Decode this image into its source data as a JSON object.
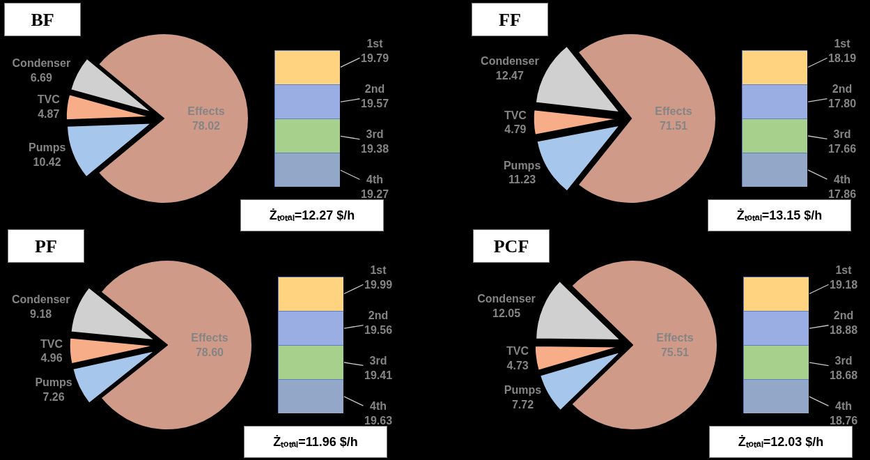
{
  "chart_data": [
    {
      "type": "pie",
      "title": "BF",
      "categories": [
        "Effects",
        "Condenser",
        "TVC",
        "Pumps"
      ],
      "values": [
        78.02,
        6.69,
        4.87,
        10.42
      ],
      "value_labels": [
        "78.02",
        "6.69",
        "4.87",
        "10.42"
      ],
      "colors": [
        "#d09a89",
        "#d0d0d0",
        "#f7ae88",
        "#a7c6ec"
      ]
    },
    {
      "type": "bar",
      "stacked": true,
      "categories": [
        null
      ],
      "tick_labels": false,
      "series": [
        {
          "name": "4th",
          "color": "#93a8c9",
          "values": [
            19.27
          ],
          "value_labels": [
            "19.27"
          ]
        },
        {
          "name": "3rd",
          "color": "#a8d08d",
          "values": [
            19.38
          ],
          "value_labels": [
            "19.38"
          ]
        },
        {
          "name": "2nd",
          "color": "#9aaee3",
          "values": [
            19.57
          ],
          "value_labels": [
            "19.57"
          ]
        },
        {
          "name": "1st",
          "color": "#ffd37f",
          "values": [
            19.79
          ],
          "value_labels": [
            "19.79"
          ]
        }
      ],
      "annotations": [
        "Żₜₒₜₐₗ=12.27 $/h"
      ]
    },
    {
      "type": "pie",
      "title": "FF",
      "categories": [
        "Effects",
        "Condenser",
        "TVC",
        "Pumps"
      ],
      "values": [
        71.51,
        12.47,
        4.79,
        11.23
      ],
      "value_labels": [
        "71.51",
        "12.47",
        "4.79",
        "11.23"
      ],
      "colors": [
        "#d09a89",
        "#d0d0d0",
        "#f7ae88",
        "#a7c6ec"
      ]
    },
    {
      "type": "bar",
      "stacked": true,
      "categories": [
        null
      ],
      "tick_labels": false,
      "series": [
        {
          "name": "4th",
          "color": "#93a8c9",
          "values": [
            17.86
          ],
          "value_labels": [
            "17.86"
          ]
        },
        {
          "name": "3rd",
          "color": "#a8d08d",
          "values": [
            17.66
          ],
          "value_labels": [
            "17.66"
          ]
        },
        {
          "name": "2nd",
          "color": "#9aaee3",
          "values": [
            17.8
          ],
          "value_labels": [
            "17.80"
          ]
        },
        {
          "name": "1st",
          "color": "#ffd37f",
          "values": [
            18.19
          ],
          "value_labels": [
            "18.19"
          ]
        }
      ],
      "annotations": [
        "Żₜₒₜₐₗ=13.15 $/h"
      ]
    },
    {
      "type": "pie",
      "title": "PF",
      "categories": [
        "Effects",
        "Condenser",
        "TVC",
        "Pumps"
      ],
      "values": [
        78.6,
        9.18,
        4.96,
        7.26
      ],
      "value_labels": [
        "78.60",
        "9.18",
        "4.96",
        "7.26"
      ],
      "colors": [
        "#d09a89",
        "#d0d0d0",
        "#f7ae88",
        "#a7c6ec"
      ]
    },
    {
      "type": "bar",
      "stacked": true,
      "categories": [
        null
      ],
      "tick_labels": false,
      "series": [
        {
          "name": "4th",
          "color": "#93a8c9",
          "values": [
            19.63
          ],
          "value_labels": [
            "19.63"
          ]
        },
        {
          "name": "3rd",
          "color": "#a8d08d",
          "values": [
            19.41
          ],
          "value_labels": [
            "19.41"
          ]
        },
        {
          "name": "2nd",
          "color": "#9aaee3",
          "values": [
            19.56
          ],
          "value_labels": [
            "19.56"
          ]
        },
        {
          "name": "1st",
          "color": "#ffd37f",
          "values": [
            19.99
          ],
          "value_labels": [
            "19.99"
          ]
        }
      ],
      "annotations": [
        "Żₜₒₜₐₗ=11.96 $/h"
      ]
    },
    {
      "type": "pie",
      "title": "PCF",
      "categories": [
        "Effects",
        "Condenser",
        "TVC",
        "Pumps"
      ],
      "values": [
        75.51,
        12.05,
        4.73,
        7.72
      ],
      "value_labels": [
        "75.51",
        "12.05",
        "4.73",
        "7.72"
      ],
      "colors": [
        "#d09a89",
        "#d0d0d0",
        "#f7ae88",
        "#a7c6ec"
      ]
    },
    {
      "type": "bar",
      "stacked": true,
      "categories": [
        null
      ],
      "tick_labels": false,
      "series": [
        {
          "name": "4th",
          "color": "#93a8c9",
          "values": [
            18.76
          ],
          "value_labels": [
            "18.76"
          ]
        },
        {
          "name": "3rd",
          "color": "#a8d08d",
          "values": [
            18.68
          ],
          "value_labels": [
            "18.68"
          ]
        },
        {
          "name": "2nd",
          "color": "#9aaee3",
          "values": [
            18.88
          ],
          "value_labels": [
            "18.88"
          ]
        },
        {
          "name": "1st",
          "color": "#ffd37f",
          "values": [
            19.18
          ],
          "value_labels": [
            "19.18"
          ]
        }
      ],
      "annotations": [
        "Żₜₒₜₐₗ=12.03 $/h"
      ]
    }
  ]
}
